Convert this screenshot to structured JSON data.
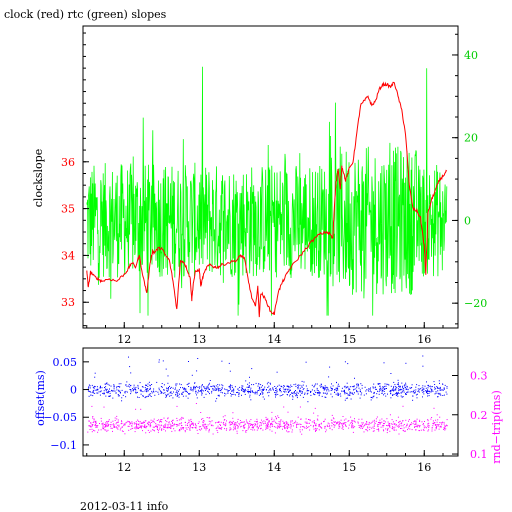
{
  "chart_data": [
    {
      "type": "line",
      "title": "clock (red) rtc (green) slopes",
      "ylabel": "clockslope",
      "xlim": [
        11.45,
        16.45
      ],
      "ylim": [
        32.45,
        38.9
      ],
      "y2lim": [
        -26,
        47
      ],
      "x_ticks": [
        "12",
        "13",
        "14",
        "15",
        "16"
      ],
      "y_ticks": [
        "33",
        "34",
        "35",
        "36"
      ],
      "y2_ticks": [
        "−20",
        "0",
        "20",
        "40"
      ],
      "series": [
        {
          "axis": "left",
          "color": "#ff0000",
          "x": [
            11.5,
            11.52,
            11.55,
            11.6,
            11.65,
            11.7,
            11.8,
            11.9,
            12.0,
            12.05,
            12.1,
            12.15,
            12.2,
            12.25,
            12.3,
            12.35,
            12.38,
            12.4,
            12.45,
            12.5,
            12.55,
            12.6,
            12.65,
            12.7,
            12.75,
            12.8,
            12.85,
            12.88,
            12.9,
            12.92,
            12.95,
            13.0,
            13.02,
            13.05,
            13.1,
            13.15,
            13.2,
            13.25,
            13.3,
            13.4,
            13.5,
            13.55,
            13.6,
            13.65,
            13.7,
            13.75,
            13.78,
            13.8,
            13.82,
            13.85,
            13.9,
            13.95,
            14.0,
            14.05,
            14.1,
            14.15,
            14.2,
            14.3,
            14.4,
            14.5,
            14.6,
            14.7,
            14.75,
            14.78,
            14.8,
            14.82,
            14.85,
            14.88,
            14.9,
            14.92,
            14.95,
            15.0,
            15.05,
            15.1,
            15.15,
            15.2,
            15.25,
            15.3,
            15.35,
            15.4,
            15.45,
            15.5,
            15.55,
            15.6,
            15.65,
            15.7,
            15.75,
            15.8,
            15.85,
            15.9,
            15.95,
            16.0,
            16.02,
            16.05,
            16.1,
            16.15,
            16.2,
            16.25,
            16.3
          ],
          "y": [
            33.7,
            33.3,
            33.65,
            33.55,
            33.5,
            33.45,
            33.5,
            33.45,
            33.6,
            33.7,
            33.85,
            33.75,
            34.0,
            33.55,
            33.2,
            33.9,
            34.1,
            34.05,
            34.15,
            34.15,
            34.0,
            33.9,
            33.45,
            32.85,
            33.9,
            33.85,
            33.65,
            33.5,
            33.05,
            33.4,
            33.65,
            33.7,
            33.35,
            33.55,
            33.75,
            33.8,
            33.75,
            33.75,
            33.8,
            33.85,
            33.9,
            34.0,
            33.95,
            33.5,
            33.1,
            32.9,
            33.35,
            32.7,
            33.2,
            33.15,
            33.0,
            32.8,
            32.75,
            33.2,
            33.4,
            33.55,
            33.7,
            33.9,
            34.1,
            34.3,
            34.45,
            34.5,
            34.45,
            34.35,
            35.0,
            35.5,
            35.85,
            35.4,
            35.9,
            35.8,
            35.6,
            35.85,
            36.0,
            36.6,
            37.2,
            37.3,
            37.4,
            37.2,
            37.3,
            37.55,
            37.65,
            37.65,
            37.6,
            37.7,
            37.4,
            37.1,
            36.6,
            35.5,
            35.0,
            34.95,
            34.8,
            34.2,
            33.6,
            34.9,
            35.2,
            35.4,
            35.6,
            35.7,
            35.8
          ]
        },
        {
          "axis": "right",
          "color": "#00ff00",
          "seed": 12345
        }
      ]
    },
    {
      "type": "scatter",
      "xlabel_footer": "2012-03-11 info",
      "ylabel": "offset(ms)",
      "y2label": "rnd−trip(ms)",
      "xlim": [
        11.45,
        16.45
      ],
      "ylim": [
        -0.12,
        0.075
      ],
      "y2lim": [
        0.095,
        0.37
      ],
      "x_ticks": [
        "12",
        "13",
        "14",
        "15",
        "16"
      ],
      "y_ticks": [
        "0.05",
        "0",
        "−0.05",
        "−0.1"
      ],
      "y2_ticks": [
        "0.3",
        "0.2",
        "0.1"
      ],
      "series": [
        {
          "name": "offset",
          "axis": "left",
          "color": "#0000ff",
          "center": 0.0,
          "spread": 0.012
        },
        {
          "name": "rnd-trip",
          "axis": "right",
          "color": "#ff00ff",
          "center": 0.175,
          "spread": 0.015
        }
      ]
    }
  ],
  "footer": {
    "text": "2012-03-11 info"
  },
  "colors": {
    "axis": "#000000",
    "red": "#ff0000",
    "green": "#00ff00",
    "blue": "#0000ff",
    "magenta": "#ff00ff"
  }
}
